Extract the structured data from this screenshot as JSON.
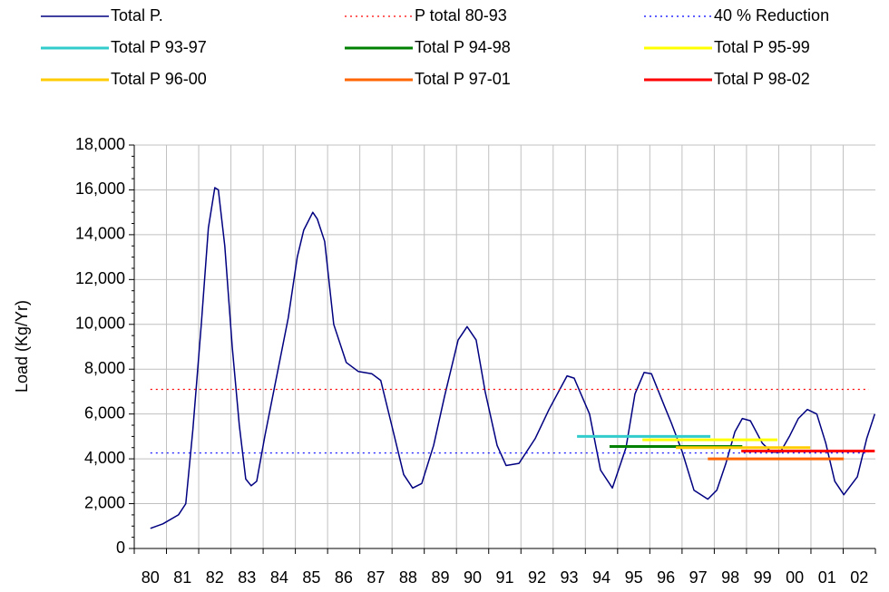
{
  "chart_data": {
    "type": "line",
    "y_label": "Load (Kg/Yr)",
    "categories": [
      "80",
      "81",
      "82",
      "83",
      "84",
      "85",
      "86",
      "87",
      "88",
      "89",
      "90",
      "91",
      "92",
      "93",
      "94",
      "95",
      "96",
      "97",
      "98",
      "99",
      "00",
      "01",
      "02"
    ],
    "xlim": [
      -0.5,
      22.5
    ],
    "ylim": [
      0,
      18000
    ],
    "yticks": [
      {
        "value": 0,
        "label": "0"
      },
      {
        "value": 2000,
        "label": "2,000"
      },
      {
        "value": 4000,
        "label": "4,000"
      },
      {
        "value": 6000,
        "label": "6,000"
      },
      {
        "value": 8000,
        "label": "8,000"
      },
      {
        "value": 10000,
        "label": "10,000"
      },
      {
        "value": 12000,
        "label": "12,000"
      },
      {
        "value": 14000,
        "label": "14,000"
      },
      {
        "value": 16000,
        "label": "16,000"
      },
      {
        "value": 18000,
        "label": "18,000"
      }
    ],
    "grid": true,
    "legend": "top",
    "series": [
      {
        "name": "Total P.",
        "color": "#000080",
        "dash": "solid",
        "width": 1.5,
        "x": [
          0,
          0.39,
          0.87,
          1.1,
          1.32,
          1.58,
          1.8,
          2.0,
          2.11,
          2.31,
          2.54,
          2.76,
          2.96,
          3.13,
          3.3,
          3.55,
          3.77,
          4.06,
          4.28,
          4.56,
          4.76,
          5.04,
          5.18,
          5.41,
          5.69,
          6.08,
          6.45,
          6.87,
          7.15,
          7.49,
          7.86,
          8.14,
          8.42,
          8.79,
          9.13,
          9.55,
          9.83,
          10.11,
          10.39,
          10.76,
          11.04,
          11.44,
          11.94,
          12.37,
          12.93,
          13.15,
          13.63,
          13.97,
          14.34,
          14.76,
          15.04,
          15.32,
          15.55,
          15.97,
          16.17,
          16.51,
          16.87,
          17.3,
          17.58,
          17.86,
          18.14,
          18.37,
          18.62,
          18.99,
          19.27,
          19.55,
          19.83,
          20.11,
          20.39,
          20.68,
          20.96,
          21.24,
          21.52,
          21.94,
          22.23,
          22.48
        ],
        "values": [
          900,
          1100,
          1500,
          2000,
          5300,
          10000,
          14300,
          16100,
          16000,
          13500,
          9000,
          5500,
          3100,
          2800,
          3000,
          5000,
          6600,
          8700,
          10300,
          13000,
          14200,
          15000,
          14700,
          13700,
          10000,
          8300,
          7900,
          7800,
          7500,
          5500,
          3300,
          2700,
          2900,
          4600,
          6800,
          9300,
          9900,
          9300,
          7000,
          4600,
          3700,
          3800,
          4900,
          6200,
          7700,
          7600,
          6000,
          3500,
          2700,
          4500,
          6900,
          7850,
          7800,
          6300,
          5600,
          4300,
          2600,
          2200,
          2600,
          3800,
          5200,
          5800,
          5700,
          4700,
          4300,
          4300,
          5000,
          5800,
          6200,
          6000,
          4700,
          3000,
          2400,
          3200,
          4900,
          6000
        ]
      },
      {
        "name": "P total 80-93",
        "color": "#ff0000",
        "dash": "dotted",
        "width": 1.2,
        "x": [
          0,
          22.3
        ],
        "values": [
          7100,
          7100
        ]
      },
      {
        "name": "40 % Reduction",
        "color": "#0000ff",
        "dash": "dotted",
        "width": 1.2,
        "x": [
          0,
          22.3
        ],
        "values": [
          4260,
          4260
        ]
      },
      {
        "name": "Total P 93-97",
        "color": "#33cccc",
        "dash": "solid",
        "width": 3,
        "x": [
          13.24,
          17.38
        ],
        "values": [
          5000,
          5000
        ]
      },
      {
        "name": "Total P 94-98",
        "color": "#008000",
        "dash": "solid",
        "width": 3,
        "x": [
          14.25,
          18.37
        ],
        "values": [
          4550,
          4550
        ]
      },
      {
        "name": "Total P 95-99",
        "color": "#ffff00",
        "dash": "solid",
        "width": 3,
        "x": [
          15.27,
          19.46
        ],
        "values": [
          4850,
          4850
        ]
      },
      {
        "name": "Total P 96-00",
        "color": "#ffcc00",
        "dash": "solid",
        "width": 3,
        "x": [
          16.31,
          20.48
        ],
        "values": [
          4500,
          4500
        ]
      },
      {
        "name": "Total P 97-01",
        "color": "#ff6600",
        "dash": "solid",
        "width": 3,
        "x": [
          17.3,
          21.52
        ],
        "values": [
          4000,
          4000
        ]
      },
      {
        "name": "Total P 98-02",
        "color": "#ff0000",
        "dash": "solid",
        "width": 3,
        "x": [
          18.34,
          22.48
        ],
        "values": [
          4350,
          4350
        ]
      }
    ]
  }
}
